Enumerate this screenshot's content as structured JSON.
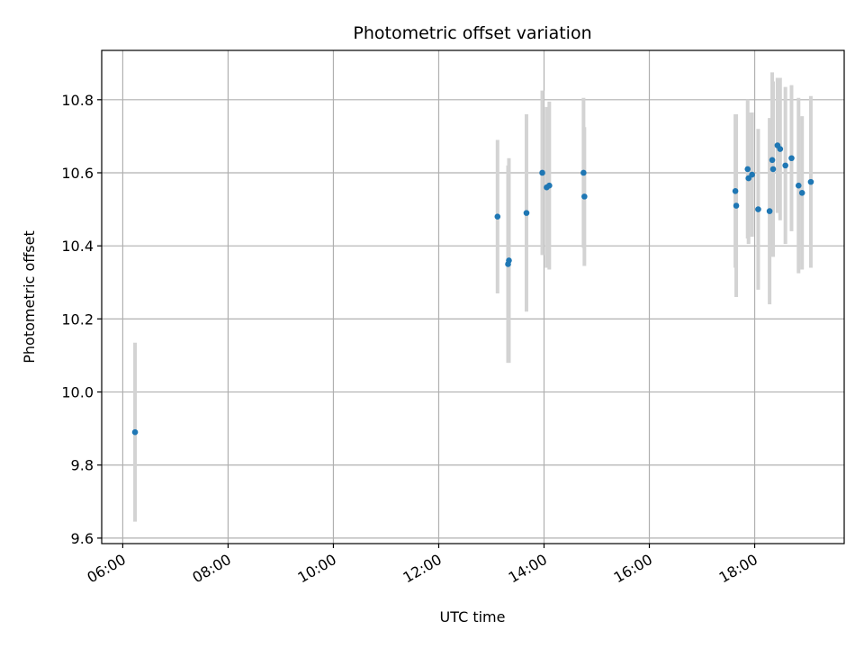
{
  "chart_data": {
    "type": "scatter",
    "title": "Photometric offset variation",
    "xlabel": "UTC time",
    "ylabel": "Photometric offset",
    "xlim": [
      "05:36",
      "19:42"
    ],
    "ylim": [
      9.585,
      10.935
    ],
    "grid": true,
    "x_ticks": [
      "06:00",
      "08:00",
      "10:00",
      "12:00",
      "14:00",
      "16:00",
      "18:00"
    ],
    "y_ticks": [
      "9.6",
      "9.8",
      "10.0",
      "10.2",
      "10.4",
      "10.6",
      "10.8"
    ],
    "colors": {
      "point": "#1f77b4",
      "errorbar": "#d3d3d3",
      "grid": "#b0b0b0"
    },
    "points": [
      {
        "x": "06:14",
        "y": 9.89,
        "err": 0.245
      },
      {
        "x": "13:07",
        "y": 10.48,
        "err": 0.21
      },
      {
        "x": "13:19",
        "y": 10.35,
        "err": 0.27
      },
      {
        "x": "13:20",
        "y": 10.36,
        "err": 0.28
      },
      {
        "x": "13:40",
        "y": 10.49,
        "err": 0.27
      },
      {
        "x": "13:58",
        "y": 10.6,
        "err": 0.225
      },
      {
        "x": "14:03",
        "y": 10.56,
        "err": 0.22
      },
      {
        "x": "14:06",
        "y": 10.565,
        "err": 0.23
      },
      {
        "x": "14:45",
        "y": 10.6,
        "err": 0.205
      },
      {
        "x": "14:46",
        "y": 10.535,
        "err": 0.19
      },
      {
        "x": "17:38",
        "y": 10.55,
        "err": 0.21
      },
      {
        "x": "17:39",
        "y": 10.51,
        "err": 0.25
      },
      {
        "x": "17:52",
        "y": 10.61,
        "err": 0.19
      },
      {
        "x": "17:53",
        "y": 10.585,
        "err": 0.18
      },
      {
        "x": "17:57",
        "y": 10.595,
        "err": 0.17
      },
      {
        "x": "18:04",
        "y": 10.5,
        "err": 0.22
      },
      {
        "x": "18:17",
        "y": 10.495,
        "err": 0.255
      },
      {
        "x": "18:20",
        "y": 10.635,
        "err": 0.24
      },
      {
        "x": "18:21",
        "y": 10.61,
        "err": 0.24
      },
      {
        "x": "18:26",
        "y": 10.675,
        "err": 0.185
      },
      {
        "x": "18:29",
        "y": 10.665,
        "err": 0.195
      },
      {
        "x": "18:35",
        "y": 10.62,
        "err": 0.215
      },
      {
        "x": "18:42",
        "y": 10.64,
        "err": 0.2
      },
      {
        "x": "18:50",
        "y": 10.565,
        "err": 0.24
      },
      {
        "x": "18:54",
        "y": 10.545,
        "err": 0.21
      },
      {
        "x": "19:04",
        "y": 10.575,
        "err": 0.235
      }
    ]
  }
}
